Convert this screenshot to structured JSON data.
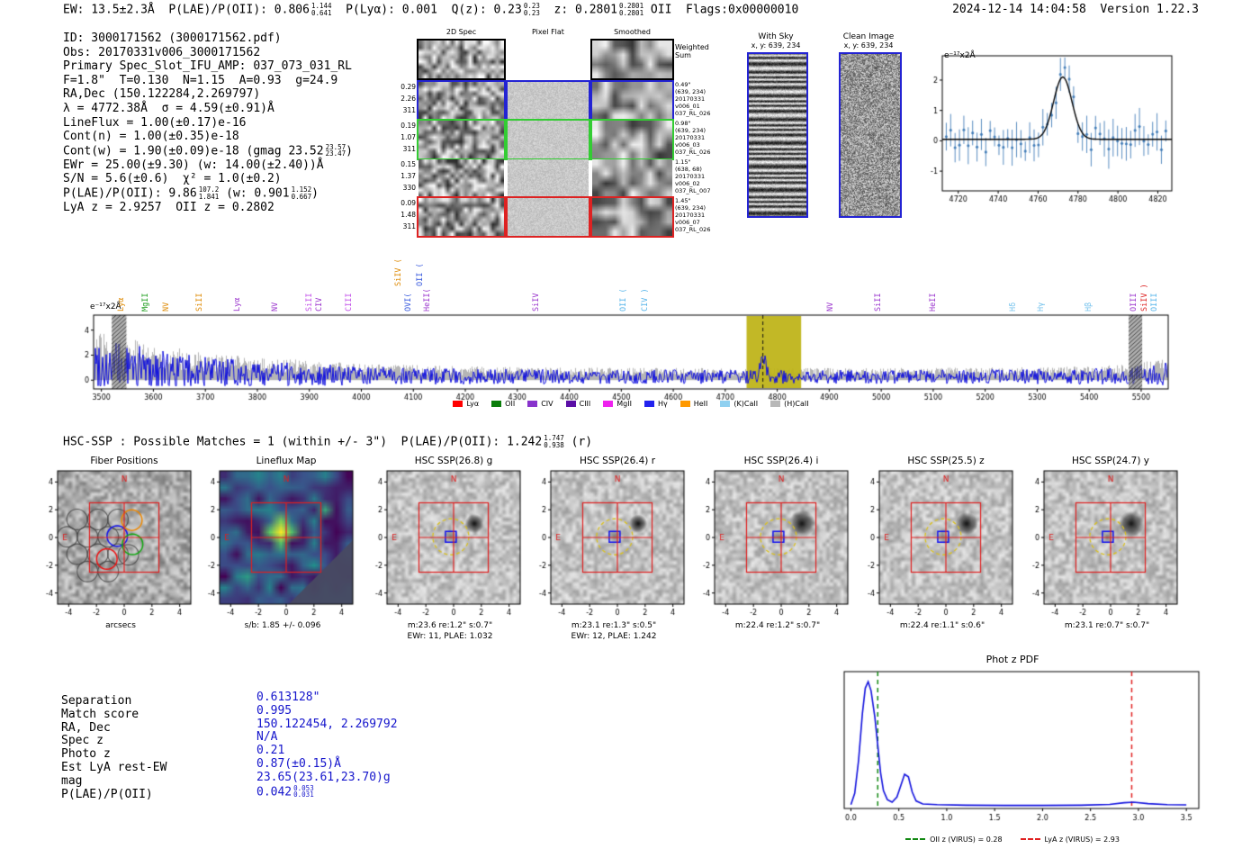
{
  "title_bar": {
    "left_segments": [
      {
        "text": "EW: 13.5±2.3Å  P(LAE)/P(OII): 0.806"
      },
      {
        "stack": {
          "hi": "1.144",
          "lo": "0.641"
        }
      },
      {
        "text": "  P(Lyα): 0.001  Q(z): 0.23"
      },
      {
        "stack": {
          "hi": "0.23",
          "lo": "0.23"
        }
      },
      {
        "text": "  z: 0.2801"
      },
      {
        "stack": {
          "hi": "0.2801",
          "lo": "0.2801"
        }
      },
      {
        "text": " OII  Flags:0x00000010"
      }
    ],
    "right": "2024-12-14 14:04:58  Version 1.22.3"
  },
  "info_block": {
    "lines": [
      {
        "segments": [
          {
            "text": "ID: 3000171562 (3000171562.pdf)"
          }
        ]
      },
      {
        "segments": [
          {
            "text": "Obs: 20170331v006_3000171562"
          }
        ]
      },
      {
        "segments": [
          {
            "text": "Primary Spec_Slot_IFU_AMP: 037_073_031_RL"
          }
        ]
      },
      {
        "segments": [
          {
            "text": "F=1.8\"  T=0.130  N=1.15  A=0.93  g=24.9"
          }
        ]
      },
      {
        "segments": [
          {
            "text": "RA,Dec (150.122284,2.269797)"
          }
        ]
      },
      {
        "segments": [
          {
            "text": "λ = 4772.38Å  σ = 4.59(±0.91)Å"
          }
        ]
      },
      {
        "segments": [
          {
            "text": "LineFlux = 1.00(±0.17)e-16"
          }
        ]
      },
      {
        "segments": [
          {
            "text": "Cont(n) = 1.00(±0.35)e-18"
          }
        ]
      },
      {
        "segments": [
          {
            "text": "Cont(w) = 1.90(±0.09)e-18 (gmag 23.52"
          },
          {
            "stack": {
              "hi": "23.57",
              "lo": "23.47"
            }
          },
          {
            "text": ")"
          }
        ]
      },
      {
        "segments": [
          {
            "text": "EWr = 25.00(±9.30) (w: 14.00(±2.40))Å"
          }
        ]
      },
      {
        "segments": [
          {
            "text": "S/N = 5.6(±0.6)  χ² = 1.0(±0.2)"
          }
        ]
      },
      {
        "segments": [
          {
            "text": "P(LAE)/P(OII): 9.86"
          },
          {
            "stack": {
              "hi": "107.2",
              "lo": "1.841"
            }
          },
          {
            "text": " (w: 0.901"
          },
          {
            "stack": {
              "hi": "1.152",
              "lo": "0.667"
            }
          },
          {
            "text": ")"
          }
        ]
      },
      {
        "segments": [
          {
            "text": "LyA z = 2.9257  OII z = 0.2802"
          }
        ]
      }
    ]
  },
  "spec2d": {
    "column_headers": [
      "2D Spec",
      "Pixel Flat",
      "Smoothed"
    ],
    "weighted_label": "Weighted\nSum",
    "rows": [
      {
        "border": "#000000",
        "left": [],
        "right": []
      },
      {
        "border": "#2323d3",
        "left": [
          "0.29",
          "2.26",
          "311"
        ],
        "right": [
          "0.49\"",
          "(639, 234)",
          "20170331",
          "v006_01",
          "037_RL_026"
        ]
      },
      {
        "border": "#33cc33",
        "left": [
          "0.19",
          "1.07",
          "311"
        ],
        "right": [
          "0.98\"",
          "(639, 234)",
          "20170331",
          "v006_03",
          "037_RL_026"
        ]
      },
      {
        "border": "",
        "left": [
          "0.15",
          "1.37",
          "330"
        ],
        "right": [
          "1.15\"",
          "(638, 68)",
          "20170331",
          "v006_02",
          "037_RL_007"
        ]
      },
      {
        "border": "#dd2222",
        "left": [
          "0.09",
          "1.48",
          "311"
        ],
        "right": [
          "1.45\"",
          "(639, 234)",
          "20170331",
          "v006_07",
          "037_RL_026"
        ]
      }
    ]
  },
  "sky_panels": {
    "with_sky": {
      "title": "With Sky",
      "coords": "x, y: 639, 234"
    },
    "clean": {
      "title": "Clean Image",
      "coords": "x, y: 639, 234"
    }
  },
  "hsc_line": {
    "segments": [
      {
        "text": "HSC-SSP : Possible Matches = 1 (within +/- 3\")  P(LAE)/P(OII): 1.242"
      },
      {
        "stack": {
          "hi": "1.747",
          "lo": "0.938"
        }
      },
      {
        "text": " (r)"
      }
    ]
  },
  "cutouts": {
    "axis_ticks": [
      "-4",
      "-2",
      "0",
      "2",
      "4"
    ],
    "compass": {
      "north": "N",
      "east": "E"
    },
    "panels": [
      {
        "title": "Fiber Positions",
        "xlabel": "arcsecs",
        "sublabel": "",
        "type": "fiber"
      },
      {
        "title": "Lineflux Map",
        "xlabel": "s/b: 1.85 +/- 0.096",
        "sublabel": "",
        "type": "map"
      },
      {
        "title": "HSC SSP(26.8) g",
        "xlabel": "m:23.6 re:1.2\" s:0.7\"",
        "sublabel": "EWr: 11, PLAE: 1.032",
        "type": "sky"
      },
      {
        "title": "HSC SSP(26.4) r",
        "xlabel": "m:23.1 re:1.3\" s:0.5\"",
        "sublabel": "EWr: 12, PLAE: 1.242",
        "type": "sky"
      },
      {
        "title": "HSC SSP(26.4) i",
        "xlabel": "m:22.4 re:1.2\" s:0.7\"",
        "sublabel": "",
        "type": "sky"
      },
      {
        "title": "HSC SSP(25.5) z",
        "xlabel": "m:22.4 re:1.1\" s:0.6\"",
        "sublabel": "",
        "type": "sky"
      },
      {
        "title": "HSC SSP(24.7) y",
        "xlabel": "m:23.1 re:0.7\" s:0.7\"",
        "sublabel": "",
        "type": "sky"
      }
    ]
  },
  "match_table": {
    "value_color": "#1515cc",
    "rows": [
      {
        "label": "Separation",
        "value_segments": [
          {
            "text": "0.613128\""
          }
        ]
      },
      {
        "label": "Match score",
        "value_segments": [
          {
            "text": "0.995"
          }
        ]
      },
      {
        "label": "RA, Dec",
        "value_segments": [
          {
            "text": "150.122454, 2.269792"
          }
        ]
      },
      {
        "label": "Spec z",
        "value_segments": [
          {
            "text": "N/A"
          }
        ]
      },
      {
        "label": "Photo z",
        "value_segments": [
          {
            "text": "0.21"
          }
        ]
      },
      {
        "label": "Est LyA rest-EW",
        "value_segments": [
          {
            "text": "0.87(±0.15)Å"
          }
        ]
      },
      {
        "label": "mag",
        "value_segments": [
          {
            "text": "23.65(23.61,23.70)g"
          }
        ]
      },
      {
        "label": "P(LAE)/P(OII)",
        "value_segments": [
          {
            "text": "0.042"
          },
          {
            "stack": {
              "hi": "0.053",
              "lo": "0.031"
            }
          }
        ]
      }
    ]
  },
  "chart_data": [
    {
      "id": "line_fit",
      "type": "scatter",
      "title": "",
      "ylabel": "e⁻¹⁷x2Å",
      "xlim": [
        4712,
        4827
      ],
      "ylim": [
        -1.65,
        2.8
      ],
      "x_ticks": [
        4720,
        4740,
        4760,
        4780,
        4800,
        4820
      ],
      "y_ticks": [
        -1,
        0,
        1,
        2
      ],
      "fit": {
        "center": 4772.38,
        "sigma": 4.59,
        "amplitude": 2.05,
        "baseline": 0.05
      },
      "point_color": "#2e6fb0",
      "fit_color": "#000000"
    },
    {
      "id": "full_spectrum",
      "type": "line",
      "title": "",
      "ylabel": "e⁻¹⁷x2Å",
      "xlim": [
        3485,
        5552
      ],
      "ylim": [
        -0.7,
        5.2
      ],
      "x_ticks": [
        3500,
        3600,
        3700,
        3800,
        3900,
        4000,
        4100,
        4200,
        4300,
        4400,
        4500,
        4600,
        4700,
        4800,
        4900,
        5000,
        5100,
        5200,
        5300,
        5400,
        5500
      ],
      "y_ticks": [
        0,
        2,
        4
      ],
      "line_color": "#1212dd",
      "envelope_color": "#b5b5b5",
      "envelope": [
        [
          3485,
          3.8
        ],
        [
          3520,
          3.4
        ],
        [
          3560,
          3.1
        ],
        [
          3620,
          2.5
        ],
        [
          3700,
          2.0
        ],
        [
          3800,
          1.65
        ],
        [
          3900,
          1.45
        ],
        [
          4000,
          1.2
        ],
        [
          4150,
          1.05
        ],
        [
          4300,
          0.95
        ],
        [
          4500,
          0.9
        ],
        [
          4700,
          0.88
        ],
        [
          4900,
          0.88
        ],
        [
          5100,
          0.9
        ],
        [
          5300,
          0.95
        ],
        [
          5430,
          1.05
        ],
        [
          5520,
          1.4
        ],
        [
          5552,
          1.6
        ]
      ],
      "detected_line": {
        "wavelength": 4772.38,
        "sigma": 4.59,
        "amplitude": 1.7
      },
      "highlight_band": {
        "x0": 4741,
        "x1": 4846,
        "color": "#bfb41a"
      },
      "masked_bands": [
        [
          3520,
          3548
        ],
        [
          5476,
          5502
        ]
      ],
      "emission_line_labels": [
        {
          "wavelength": 3524,
          "label": "Lyα",
          "color": "#dd8800"
        },
        {
          "w ,avelength": 0,
          "label": "",
          "color": "#000000"
        },
        {
          "wavelength": 3570,
          "label": "MgII",
          "color": "#1f9e1f"
        },
        {
          "wavelength": 3610,
          "label": "NV",
          "color": "#dd8800"
        },
        {
          "wavelength": 3675,
          "label": "SiII",
          "color": "#dd8800"
        },
        {
          "wavelength": 3748,
          "label": "Lyα",
          "color": "#9933cc"
        },
        {
          "wavelength": 3820,
          "label": "NV",
          "color": "#9933cc"
        },
        {
          "wavelength": 3886,
          "label": "SiII",
          "color": "#c14ee8"
        },
        {
          "wavelength": 3904,
          "label": "CIV",
          "color": "#9933cc"
        },
        {
          "wavelength": 3962,
          "label": "CIII",
          "color": "#c14ee8"
        },
        {
          "wavelength": 4058,
          "label": "SiIV (",
          "color": "#dd8800",
          "tall": true
        },
        {
          "wavelength": 4098,
          "label": "OII (",
          "color": "#3355dd",
          "tall": true
        },
        {
          "wavelength": 4076,
          "label": "OVI(",
          "color": "#3355dd"
        },
        {
          "wavelength": 4112,
          "label": "HeII(",
          "color": "#9933cc"
        },
        {
          "wavelength": 4322,
          "label": "SiIV",
          "color": "#9933cc"
        },
        {
          "wavelength": 4490,
          "label": "OII (",
          "color": "#56b4e9"
        },
        {
          "wavelength": 4532,
          "label": "CIV )",
          "color": "#56b4e9"
        },
        {
          "wavelength": 4888,
          "label": "NV",
          "color": "#9933cc"
        },
        {
          "wavelength": 4980,
          "label": "SiII",
          "color": "#9933cc"
        },
        {
          "wavelength": 5085,
          "label": "HeII",
          "color": "#9933cc"
        },
        {
          "wavelength": 5240,
          "label": "Hδ",
          "color": "#74c2ec"
        },
        {
          "wavelength": 5293,
          "label": "Hγ",
          "color": "#74c2ec"
        },
        {
          "wavelength": 5385,
          "label": "Hβ",
          "color": "#74c2ec"
        },
        {
          "wavelength": 5472,
          "label": "OIII",
          "color": "#9933cc"
        },
        {
          "wavelength": 5492,
          "label": "SiIV )",
          "color": "#dd2222"
        },
        {
          "wavelength": 5512,
          "label": "OIII",
          "color": "#56b4e9"
        }
      ],
      "legend": [
        {
          "label": "Lyα",
          "color": "#ff0000"
        },
        {
          "label": "OII",
          "color": "#0a7d0a"
        },
        {
          "label": "CIV",
          "color": "#8833cc"
        },
        {
          "label": "CIII",
          "color": "#5b0ea6"
        },
        {
          "label": "MgII",
          "color": "#ee22ee"
        },
        {
          "label": "Hγ",
          "color": "#2222ee"
        },
        {
          "label": "HeII",
          "color": "#ff9900"
        },
        {
          "label": "(K)CaII",
          "color": "#8fd0f0"
        },
        {
          "label": "(H)CaII",
          "color": "#b8b8b8"
        }
      ]
    },
    {
      "id": "photz_pdf",
      "type": "line",
      "title": "Phot z PDF",
      "xlim": [
        -0.07,
        3.63
      ],
      "ylim": [
        0,
        1.08
      ],
      "x_ticks": [
        0.0,
        0.5,
        1.0,
        1.5,
        2.0,
        2.5,
        3.0,
        3.5
      ],
      "x_tick_labels": [
        "0.0",
        "0.5",
        "1.0",
        "1.5",
        "2.0",
        "2.5",
        "3.0",
        "3.5"
      ],
      "curve_color": "#1212dd",
      "points": [
        [
          0.0,
          0.03
        ],
        [
          0.04,
          0.12
        ],
        [
          0.08,
          0.38
        ],
        [
          0.12,
          0.75
        ],
        [
          0.15,
          0.95
        ],
        [
          0.18,
          1.0
        ],
        [
          0.21,
          0.93
        ],
        [
          0.25,
          0.72
        ],
        [
          0.28,
          0.5
        ],
        [
          0.31,
          0.28
        ],
        [
          0.34,
          0.14
        ],
        [
          0.38,
          0.07
        ],
        [
          0.43,
          0.05
        ],
        [
          0.48,
          0.09
        ],
        [
          0.52,
          0.18
        ],
        [
          0.56,
          0.27
        ],
        [
          0.6,
          0.25
        ],
        [
          0.64,
          0.13
        ],
        [
          0.68,
          0.06
        ],
        [
          0.75,
          0.035
        ],
        [
          0.9,
          0.03
        ],
        [
          1.2,
          0.026
        ],
        [
          1.6,
          0.024
        ],
        [
          2.0,
          0.024
        ],
        [
          2.4,
          0.026
        ],
        [
          2.7,
          0.032
        ],
        [
          2.85,
          0.045
        ],
        [
          2.95,
          0.05
        ],
        [
          3.1,
          0.038
        ],
        [
          3.3,
          0.03
        ],
        [
          3.5,
          0.028
        ]
      ],
      "vlines": [
        {
          "x": 0.28,
          "color": "#118811",
          "style": "dashed",
          "label": "OII z (VIRUS) = 0.28"
        },
        {
          "x": 2.93,
          "color": "#e02020",
          "style": "dashed",
          "label": "LyA z (VIRUS) = 2.93"
        }
      ]
    }
  ]
}
